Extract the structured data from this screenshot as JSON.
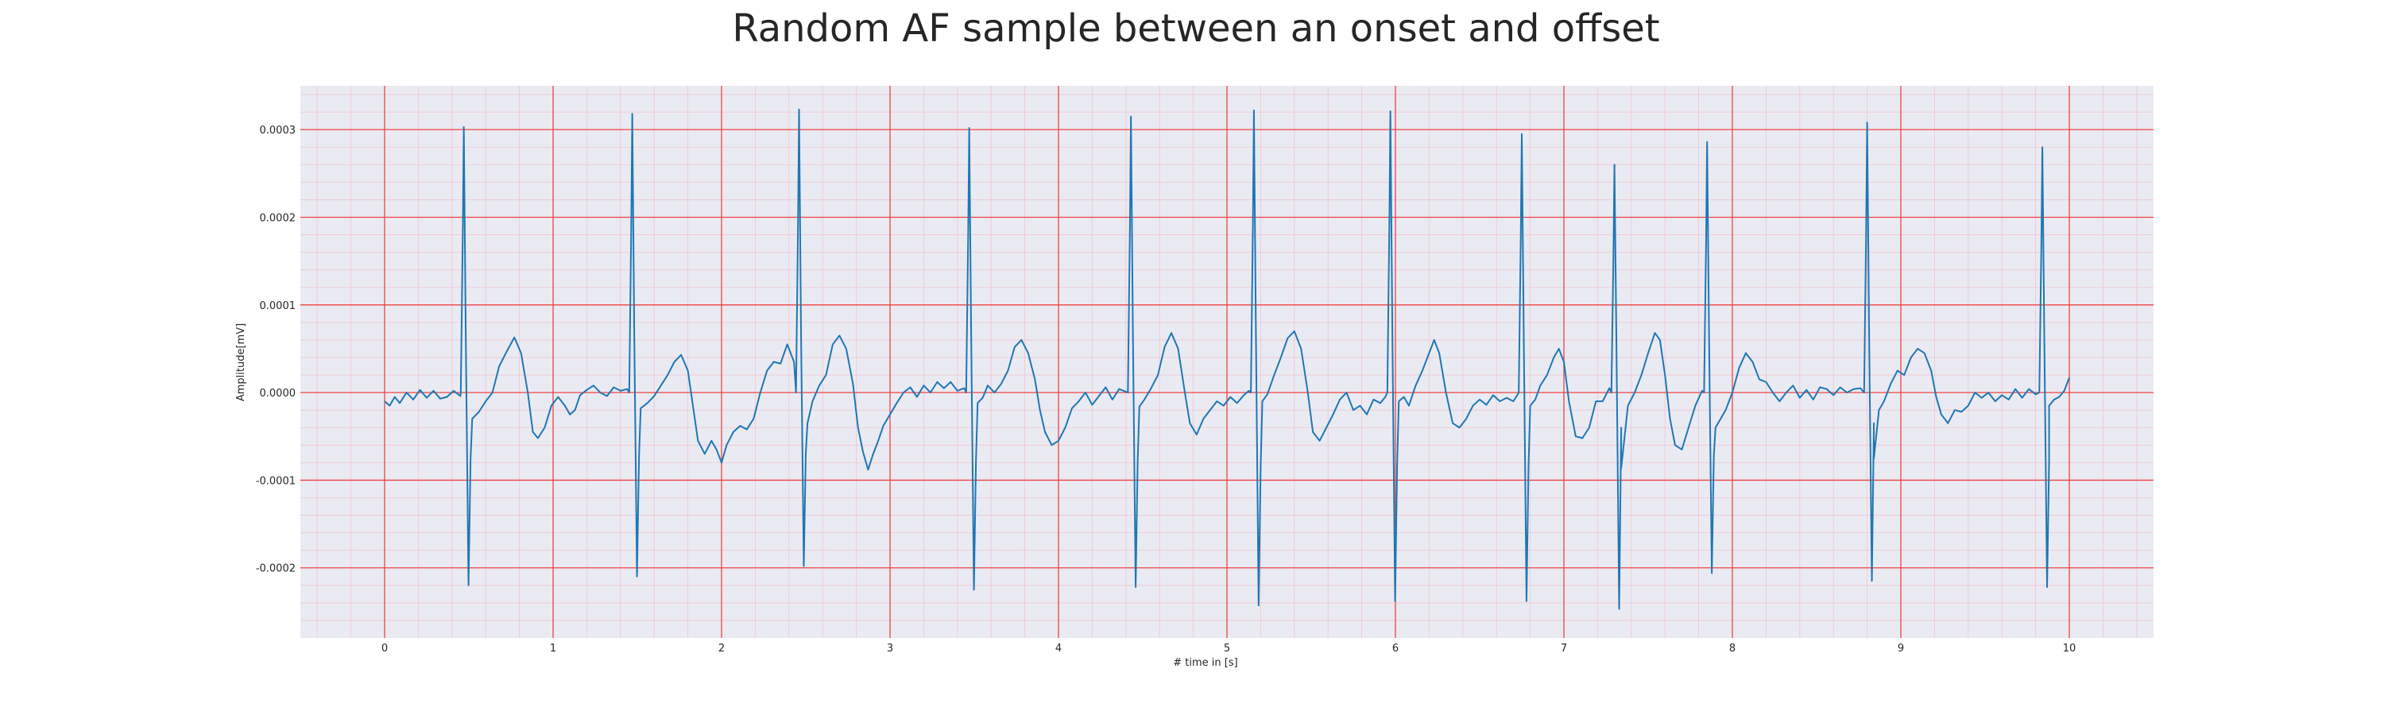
{
  "chart_data": {
    "type": "line",
    "title": "Random AF sample between an onset and offset",
    "xlabel": "# time in [s]",
    "ylabel": "Amplitude[mV]",
    "xlim": [
      -0.5,
      10.5
    ],
    "ylim": [
      -0.00028,
      0.00035
    ],
    "x_ticks": [
      0,
      1,
      2,
      3,
      4,
      5,
      6,
      7,
      8,
      9,
      10
    ],
    "x_tick_labels": [
      "0",
      "1",
      "2",
      "3",
      "4",
      "5",
      "6",
      "7",
      "8",
      "9",
      "10"
    ],
    "y_ticks": [
      -0.0002,
      -0.0001,
      0.0,
      0.0001,
      0.0002,
      0.0003
    ],
    "y_tick_labels": [
      "-0.0002",
      "-0.0001",
      "0.0000",
      "0.0001",
      "0.0002",
      "0.0003"
    ],
    "x_minor_step": 0.2,
    "y_minor_step": 2e-05,
    "grid": true,
    "colors": {
      "background": "#eaeaf2",
      "line": "#1f77b4",
      "major_grid": "#ee4444",
      "minor_grid": "#f4aab4"
    },
    "series": [
      {
        "beats": [
          {
            "t": 0.47,
            "r": 0.000303,
            "s": -0.00022
          },
          {
            "t": 1.47,
            "r": 0.000318,
            "s": -0.00021
          },
          {
            "t": 2.46,
            "r": 0.000323,
            "s": -0.000198
          },
          {
            "t": 3.47,
            "r": 0.000302,
            "s": -0.000225
          },
          {
            "t": 4.43,
            "r": 0.000315,
            "s": -0.000222
          },
          {
            "t": 5.16,
            "r": 0.000322,
            "s": -0.000243
          },
          {
            "t": 5.97,
            "r": 0.000321,
            "s": -0.000238
          },
          {
            "t": 6.75,
            "r": 0.000295,
            "s": -0.000238
          },
          {
            "t": 7.3,
            "r": 0.00026,
            "s": -0.000247
          },
          {
            "t": 7.85,
            "r": 0.000286,
            "s": -0.000206
          },
          {
            "t": 8.8,
            "r": 0.000308,
            "s": -0.000215
          },
          {
            "t": 9.84,
            "r": 0.00028,
            "s": -0.000222
          }
        ],
        "baseline": [
          [
            0.0,
            -1e-05
          ],
          [
            0.03,
            -1.5e-05
          ],
          [
            0.06,
            -5e-06
          ],
          [
            0.09,
            -1.2e-05
          ],
          [
            0.13,
            0.0
          ],
          [
            0.17,
            -8e-06
          ],
          [
            0.21,
            3e-06
          ],
          [
            0.25,
            -6e-06
          ],
          [
            0.29,
            2e-06
          ],
          [
            0.33,
            -7e-06
          ],
          [
            0.37,
            -5e-06
          ],
          [
            0.41,
            2e-06
          ],
          [
            0.45,
            -4e-06
          ],
          [
            0.52,
            -3e-05
          ],
          [
            0.56,
            -2.2e-05
          ],
          [
            0.6,
            -1e-05
          ],
          [
            0.64,
            0.0
          ],
          [
            0.68,
            3e-05
          ],
          [
            0.72,
            4.5e-05
          ],
          [
            0.77,
            6.3e-05
          ],
          [
            0.81,
            4.5e-05
          ],
          [
            0.85,
            0.0
          ],
          [
            0.88,
            -4.5e-05
          ],
          [
            0.91,
            -5.2e-05
          ],
          [
            0.95,
            -4e-05
          ],
          [
            0.99,
            -1.5e-05
          ],
          [
            1.03,
            -5e-06
          ],
          [
            1.07,
            -1.5e-05
          ],
          [
            1.1,
            -2.5e-05
          ],
          [
            1.13,
            -2e-05
          ],
          [
            1.16,
            -3e-06
          ],
          [
            1.2,
            3e-06
          ],
          [
            1.24,
            8e-06
          ],
          [
            1.28,
            0.0
          ],
          [
            1.32,
            -4e-06
          ],
          [
            1.36,
            6e-06
          ],
          [
            1.4,
            2e-06
          ],
          [
            1.44,
            4e-06
          ],
          [
            1.52,
            -1.8e-05
          ],
          [
            1.56,
            -1.2e-05
          ],
          [
            1.6,
            -4e-06
          ],
          [
            1.64,
            8e-06
          ],
          [
            1.68,
            2e-05
          ],
          [
            1.72,
            3.5e-05
          ],
          [
            1.76,
            4.3e-05
          ],
          [
            1.8,
            2.5e-05
          ],
          [
            1.83,
            -1.5e-05
          ],
          [
            1.86,
            -5.5e-05
          ],
          [
            1.9,
            -7e-05
          ],
          [
            1.94,
            -5.5e-05
          ],
          [
            1.97,
            -6.5e-05
          ],
          [
            2.0,
            -8e-05
          ],
          [
            2.03,
            -6e-05
          ],
          [
            2.07,
            -4.5e-05
          ],
          [
            2.11,
            -3.8e-05
          ],
          [
            2.15,
            -4.2e-05
          ],
          [
            2.19,
            -3e-05
          ],
          [
            2.23,
            0.0
          ],
          [
            2.27,
            2.5e-05
          ],
          [
            2.31,
            3.5e-05
          ],
          [
            2.35,
            3.3e-05
          ],
          [
            2.39,
            5.5e-05
          ],
          [
            2.43,
            3.5e-05
          ],
          [
            2.51,
            -3.5e-05
          ],
          [
            2.54,
            -1e-05
          ],
          [
            2.58,
            8e-06
          ],
          [
            2.62,
            2e-05
          ],
          [
            2.66,
            5.5e-05
          ],
          [
            2.7,
            6.5e-05
          ],
          [
            2.74,
            5e-05
          ],
          [
            2.78,
            1e-05
          ],
          [
            2.81,
            -4e-05
          ],
          [
            2.84,
            -6.8e-05
          ],
          [
            2.87,
            -8.8e-05
          ],
          [
            2.9,
            -7e-05
          ],
          [
            2.93,
            -5.5e-05
          ],
          [
            2.96,
            -3.8e-05
          ],
          [
            3.0,
            -2.5e-05
          ],
          [
            3.04,
            -1.2e-05
          ],
          [
            3.08,
            0.0
          ],
          [
            3.12,
            6e-06
          ],
          [
            3.16,
            -5e-06
          ],
          [
            3.2,
            8e-06
          ],
          [
            3.24,
            0.0
          ],
          [
            3.28,
            1.2e-05
          ],
          [
            3.32,
            5e-06
          ],
          [
            3.36,
            1.2e-05
          ],
          [
            3.4,
            2e-06
          ],
          [
            3.44,
            5e-06
          ],
          [
            3.52,
            -1.2e-05
          ],
          [
            3.55,
            -6e-06
          ],
          [
            3.58,
            8e-06
          ],
          [
            3.62,
            0.0
          ],
          [
            3.66,
            1e-05
          ],
          [
            3.7,
            2.5e-05
          ],
          [
            3.74,
            5.2e-05
          ],
          [
            3.78,
            6e-05
          ],
          [
            3.82,
            4.5e-05
          ],
          [
            3.86,
            1.5e-05
          ],
          [
            3.89,
            -2e-05
          ],
          [
            3.92,
            -4.5e-05
          ],
          [
            3.96,
            -6e-05
          ],
          [
            4.0,
            -5.5e-05
          ],
          [
            4.04,
            -4e-05
          ],
          [
            4.08,
            -1.8e-05
          ],
          [
            4.12,
            -1e-05
          ],
          [
            4.16,
            0.0
          ],
          [
            4.2,
            -1.4e-05
          ],
          [
            4.24,
            -4e-06
          ],
          [
            4.28,
            6e-06
          ],
          [
            4.32,
            -8e-06
          ],
          [
            4.36,
            4e-06
          ],
          [
            4.4,
            1e-06
          ],
          [
            4.48,
            -1.6e-05
          ],
          [
            4.51,
            -8e-06
          ],
          [
            4.55,
            5e-06
          ],
          [
            4.59,
            2e-05
          ],
          [
            4.63,
            5.2e-05
          ],
          [
            4.67,
            6.8e-05
          ],
          [
            4.71,
            5e-05
          ],
          [
            4.75,
            0.0
          ],
          [
            4.78,
            -3.5e-05
          ],
          [
            4.82,
            -4.8e-05
          ],
          [
            4.86,
            -3e-05
          ],
          [
            4.9,
            -2e-05
          ],
          [
            4.94,
            -1e-05
          ],
          [
            4.98,
            -1.5e-05
          ],
          [
            5.02,
            -5e-06
          ],
          [
            5.06,
            -1.2e-05
          ],
          [
            5.1,
            -3e-06
          ],
          [
            5.13,
            2e-06
          ],
          [
            5.21,
            -1e-05
          ],
          [
            5.24,
            -2e-06
          ],
          [
            5.28,
            2e-05
          ],
          [
            5.32,
            4e-05
          ],
          [
            5.36,
            6.2e-05
          ],
          [
            5.4,
            7e-05
          ],
          [
            5.44,
            5e-05
          ],
          [
            5.48,
            0.0
          ],
          [
            5.51,
            -4.5e-05
          ],
          [
            5.55,
            -5.5e-05
          ],
          [
            5.59,
            -4e-05
          ],
          [
            5.63,
            -2.5e-05
          ],
          [
            5.67,
            -8e-06
          ],
          [
            5.71,
            0.0
          ],
          [
            5.75,
            -2e-05
          ],
          [
            5.79,
            -1.5e-05
          ],
          [
            5.83,
            -2.5e-05
          ],
          [
            5.87,
            -8e-06
          ],
          [
            5.91,
            -1.2e-05
          ],
          [
            5.94,
            -5e-06
          ],
          [
            6.02,
            -1e-05
          ],
          [
            6.05,
            -5e-06
          ],
          [
            6.08,
            -1.5e-05
          ],
          [
            6.12,
            8e-06
          ],
          [
            6.16,
            2.5e-05
          ],
          [
            6.2,
            4.5e-05
          ],
          [
            6.23,
            6e-05
          ],
          [
            6.26,
            4.5e-05
          ],
          [
            6.3,
            0.0
          ],
          [
            6.34,
            -3.5e-05
          ],
          [
            6.38,
            -4e-05
          ],
          [
            6.42,
            -3e-05
          ],
          [
            6.46,
            -1.5e-05
          ],
          [
            6.5,
            -8e-06
          ],
          [
            6.54,
            -1.4e-05
          ],
          [
            6.58,
            -3e-06
          ],
          [
            6.62,
            -1e-05
          ],
          [
            6.66,
            -6e-06
          ],
          [
            6.7,
            -1e-05
          ],
          [
            6.72,
            -4e-06
          ],
          [
            6.8,
            -1.5e-05
          ],
          [
            6.83,
            -8e-06
          ],
          [
            6.86,
            8e-06
          ],
          [
            6.9,
            2e-05
          ],
          [
            6.94,
            4e-05
          ],
          [
            6.97,
            5e-05
          ],
          [
            7.0,
            3.5e-05
          ],
          [
            7.03,
            -1e-05
          ],
          [
            7.07,
            -5e-05
          ],
          [
            7.11,
            -5.2e-05
          ],
          [
            7.15,
            -4e-05
          ],
          [
            7.19,
            -1e-05
          ],
          [
            7.23,
            -1e-05
          ],
          [
            7.27,
            5e-06
          ],
          [
            7.34,
            -4e-05
          ],
          [
            7.38,
            -1.5e-05
          ],
          [
            7.42,
            0.0
          ],
          [
            7.46,
            2e-05
          ],
          [
            7.5,
            4.5e-05
          ],
          [
            7.54,
            6.8e-05
          ],
          [
            7.57,
            6e-05
          ],
          [
            7.6,
            2e-05
          ],
          [
            7.63,
            -3e-05
          ],
          [
            7.66,
            -6e-05
          ],
          [
            7.7,
            -6.5e-05
          ],
          [
            7.74,
            -4e-05
          ],
          [
            7.78,
            -1.5e-05
          ],
          [
            7.82,
            2e-06
          ],
          [
            7.9,
            -4e-05
          ],
          [
            7.93,
            -3e-05
          ],
          [
            7.96,
            -2e-05
          ],
          [
            8.0,
            0.0
          ],
          [
            8.04,
            2.8e-05
          ],
          [
            8.08,
            4.5e-05
          ],
          [
            8.12,
            3.5e-05
          ],
          [
            8.16,
            1.5e-05
          ],
          [
            8.2,
            1.2e-05
          ],
          [
            8.24,
            0.0
          ],
          [
            8.28,
            -1e-05
          ],
          [
            8.32,
            0.0
          ],
          [
            8.36,
            8e-06
          ],
          [
            8.4,
            -6e-06
          ],
          [
            8.44,
            3e-06
          ],
          [
            8.48,
            -8e-06
          ],
          [
            8.52,
            6e-06
          ],
          [
            8.56,
            4e-06
          ],
          [
            8.6,
            -3e-06
          ],
          [
            8.64,
            6e-06
          ],
          [
            8.68,
            0.0
          ],
          [
            8.72,
            4e-06
          ],
          [
            8.76,
            5e-06
          ],
          [
            8.84,
            -3.5e-05
          ],
          [
            8.87,
            -2e-05
          ],
          [
            8.9,
            -1e-05
          ],
          [
            8.94,
            1e-05
          ],
          [
            8.98,
            2.5e-05
          ],
          [
            9.02,
            2e-05
          ],
          [
            9.06,
            4e-05
          ],
          [
            9.1,
            5e-05
          ],
          [
            9.14,
            4.5e-05
          ],
          [
            9.18,
            2.5e-05
          ],
          [
            9.21,
            -5e-06
          ],
          [
            9.24,
            -2.5e-05
          ],
          [
            9.28,
            -3.5e-05
          ],
          [
            9.32,
            -2e-05
          ],
          [
            9.36,
            -2.2e-05
          ],
          [
            9.4,
            -1.5e-05
          ],
          [
            9.44,
            0.0
          ],
          [
            9.48,
            -6e-06
          ],
          [
            9.52,
            0.0
          ],
          [
            9.56,
            -1e-05
          ],
          [
            9.6,
            -3e-06
          ],
          [
            9.64,
            -8e-06
          ],
          [
            9.68,
            4e-06
          ],
          [
            9.72,
            -6e-06
          ],
          [
            9.76,
            4e-06
          ],
          [
            9.8,
            -2e-06
          ],
          [
            9.88,
            -1.5e-05
          ],
          [
            9.91,
            -8e-06
          ],
          [
            9.94,
            -5e-06
          ],
          [
            9.97,
            2e-06
          ],
          [
            10.0,
            1.7e-05
          ]
        ]
      }
    ]
  }
}
